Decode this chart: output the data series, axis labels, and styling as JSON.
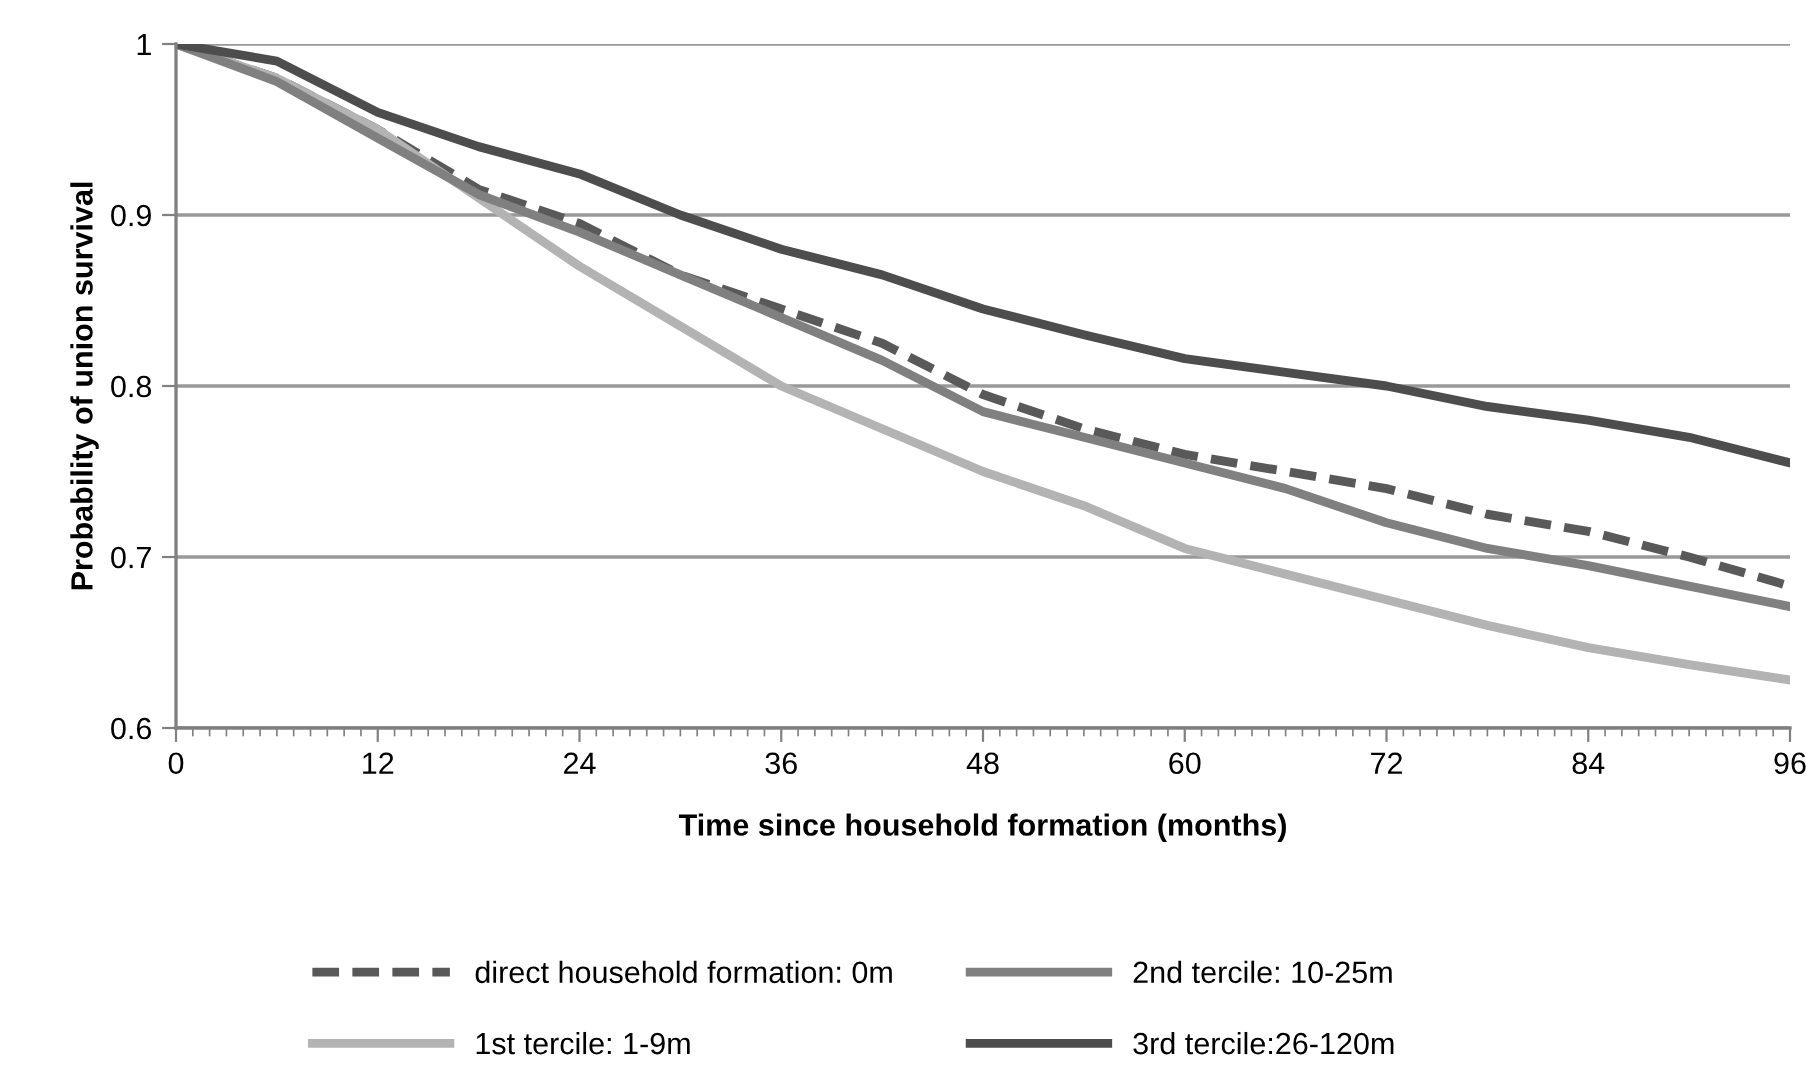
{
  "chart_data": {
    "type": "line",
    "xlabel": "Time since household formation (months)",
    "ylabel": "Probability of union survival",
    "x": [
      0,
      6,
      12,
      18,
      24,
      30,
      36,
      42,
      48,
      54,
      60,
      66,
      72,
      78,
      84,
      90,
      96
    ],
    "series": [
      {
        "name": "direct household formation: 0m",
        "color": "#595959",
        "line_style": "dashed",
        "values": [
          1,
          0.98,
          0.95,
          0.915,
          0.895,
          0.865,
          0.845,
          0.825,
          0.795,
          0.775,
          0.76,
          0.75,
          0.74,
          0.725,
          0.715,
          0.7,
          0.683
        ]
      },
      {
        "name": "1st tercile: 1-9m",
        "color": "#b3b3b3",
        "line_style": "solid",
        "values": [
          1,
          0.98,
          0.95,
          0.91,
          0.87,
          0.835,
          0.8,
          0.775,
          0.75,
          0.73,
          0.705,
          0.69,
          0.675,
          0.66,
          0.647,
          0.637,
          0.628
        ]
      },
      {
        "name": "2nd tercile: 10-25m",
        "color": "#808080",
        "line_style": "solid",
        "values": [
          1,
          0.978,
          0.945,
          0.912,
          0.89,
          0.865,
          0.84,
          0.815,
          0.785,
          0.77,
          0.755,
          0.74,
          0.72,
          0.705,
          0.695,
          0.683,
          0.671
        ]
      },
      {
        "name": "3rd tercile:26-120m",
        "color": "#4d4d4d",
        "line_style": "solid",
        "values": [
          1,
          0.99,
          0.96,
          0.94,
          0.924,
          0.9,
          0.88,
          0.865,
          0.845,
          0.83,
          0.816,
          0.808,
          0.8,
          0.788,
          0.78,
          0.77,
          0.755
        ]
      }
    ],
    "xlim": [
      0,
      96
    ],
    "xticks": [
      0,
      12,
      24,
      36,
      48,
      60,
      72,
      84,
      96
    ],
    "ylim": [
      0.6,
      1
    ],
    "yticks": [
      0.6,
      0.7,
      0.8,
      0.9,
      1
    ],
    "grid": "y",
    "legend": "bottom",
    "marker": "none"
  }
}
